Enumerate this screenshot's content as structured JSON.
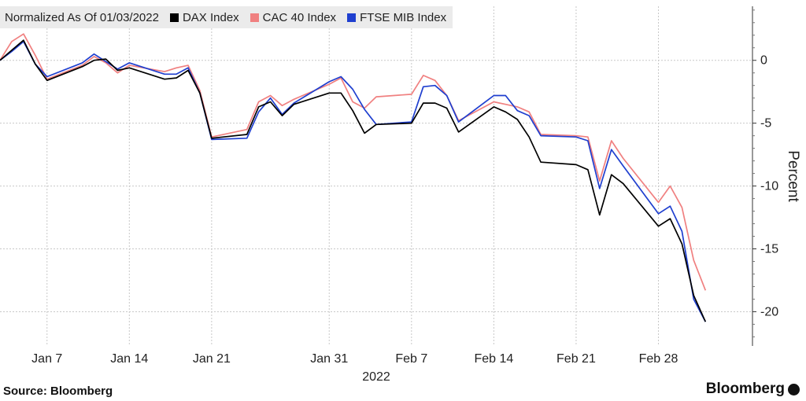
{
  "legend_title": "Normalized As Of 01/03/2022",
  "source": "Source: Bloomberg",
  "brand": "Bloomberg",
  "chart_data": {
    "type": "line",
    "x": [
      "2022-01-03",
      "2022-01-04",
      "2022-01-05",
      "2022-01-06",
      "2022-01-07",
      "2022-01-10",
      "2022-01-11",
      "2022-01-12",
      "2022-01-13",
      "2022-01-14",
      "2022-01-17",
      "2022-01-18",
      "2022-01-19",
      "2022-01-20",
      "2022-01-21",
      "2022-01-24",
      "2022-01-25",
      "2022-01-26",
      "2022-01-27",
      "2022-01-28",
      "2022-01-31",
      "2022-02-01",
      "2022-02-02",
      "2022-02-03",
      "2022-02-04",
      "2022-02-07",
      "2022-02-08",
      "2022-02-09",
      "2022-02-10",
      "2022-02-11",
      "2022-02-14",
      "2022-02-15",
      "2022-02-16",
      "2022-02-17",
      "2022-02-18",
      "2022-02-21",
      "2022-02-22",
      "2022-02-23",
      "2022-02-24",
      "2022-02-25",
      "2022-02-28",
      "2022-03-01",
      "2022-03-02",
      "2022-03-03",
      "2022-03-04",
      "2022-03-07",
      "2022-03-08"
    ],
    "series": [
      {
        "name": "DAX Index",
        "color": "#000000",
        "values": [
          0.0,
          0.8,
          1.6,
          -0.3,
          -1.6,
          -0.5,
          0.0,
          0.1,
          -0.8,
          -0.6,
          -1.5,
          -1.4,
          -0.8,
          -2.6,
          -6.2,
          -5.9,
          -3.7,
          -3.3,
          -4.4,
          -3.5,
          -2.6,
          -2.6,
          -4.0,
          -5.8,
          -5.1,
          -5.0,
          -3.4,
          -3.4,
          -3.8,
          -5.7,
          -3.7,
          -4.1,
          -4.7,
          -6.1,
          -8.1,
          -8.3,
          -8.7,
          -12.3,
          -9.1,
          -9.8,
          -13.2,
          -12.6,
          -14.6,
          -18.7,
          -20.8,
          null,
          null
        ]
      },
      {
        "name": "CAC 40 Index",
        "color": "#f08080",
        "values": [
          0.0,
          1.5,
          2.1,
          0.4,
          -1.5,
          -0.4,
          0.3,
          -0.2,
          -1.0,
          -0.4,
          -0.9,
          -0.6,
          -0.4,
          -2.4,
          -6.1,
          -5.5,
          -3.3,
          -2.8,
          -3.6,
          -3.1,
          -1.9,
          -1.4,
          -3.3,
          -3.8,
          -2.9,
          -2.7,
          -1.2,
          -1.6,
          -2.8,
          -4.8,
          -3.3,
          -3.5,
          -3.7,
          -4.1,
          -5.9,
          -6.0,
          -6.1,
          -9.6,
          -6.4,
          -7.8,
          -11.3,
          -10.0,
          -11.7,
          -15.9,
          -18.3,
          null,
          null
        ]
      },
      {
        "name": "FTSE MIB Index",
        "color": "#1f3fcf",
        "values": [
          0.0,
          0.7,
          1.5,
          -0.3,
          -1.3,
          -0.2,
          0.5,
          -0.1,
          -0.7,
          -0.2,
          -1.1,
          -1.1,
          -0.6,
          -2.6,
          -6.3,
          -6.2,
          -4.1,
          -3.0,
          -4.3,
          -3.4,
          -1.7,
          -1.3,
          -2.3,
          -3.9,
          -5.1,
          -4.9,
          -2.1,
          -2.0,
          -2.8,
          -4.9,
          -2.8,
          -2.8,
          -4.0,
          -4.4,
          -6.0,
          -6.1,
          -6.4,
          -10.2,
          -7.1,
          -8.4,
          -12.2,
          -11.6,
          -13.6,
          -19.0,
          -20.8,
          null,
          null
        ]
      }
    ],
    "x_ticks": [
      "Jan 7",
      "Jan 14",
      "Jan 21",
      "Jan 31",
      "Feb 7",
      "Feb 14",
      "Feb 21",
      "Feb 28"
    ],
    "x_tick_dates": [
      "2022-01-07",
      "2022-01-14",
      "2022-01-21",
      "2022-01-31",
      "2022-02-07",
      "2022-02-14",
      "2022-02-21",
      "2022-02-28"
    ],
    "x_sublabel": "2022",
    "y_ticks": [
      0,
      -5,
      -10,
      -15,
      -20
    ],
    "ylabel": "Percent",
    "ylim": [
      -22.6,
      4.3
    ],
    "x_range": [
      "2022-01-03",
      "2022-03-08"
    ],
    "grid": true,
    "y_axis_side": "right",
    "legend_placement": "top-left"
  }
}
